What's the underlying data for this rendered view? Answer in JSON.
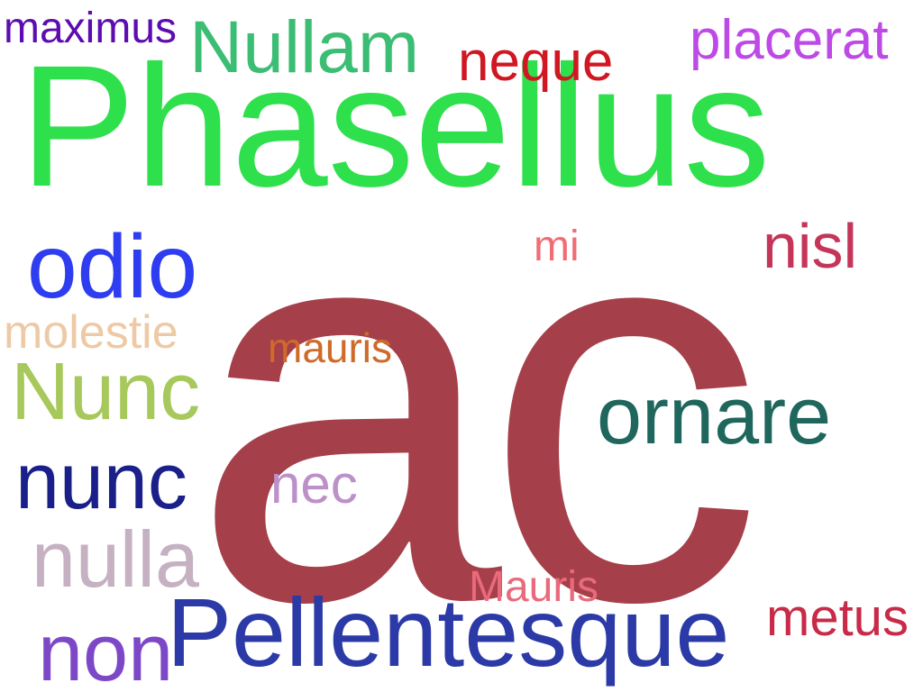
{
  "words": [
    {
      "text": "ac",
      "color": "#a5404a"
    },
    {
      "text": "Phasellus",
      "color": "#2fe04d"
    },
    {
      "text": "Pellentesque",
      "color": "#2b3aa6"
    },
    {
      "text": "ornare",
      "color": "#1f665c"
    },
    {
      "text": "odio",
      "color": "#2e3df0"
    },
    {
      "text": "Nullam",
      "color": "#3cbd74"
    },
    {
      "text": "Nunc",
      "color": "#a7c85a"
    },
    {
      "text": "nunc",
      "color": "#1a1f8a"
    },
    {
      "text": "nulla",
      "color": "#c5b1c1"
    },
    {
      "text": "non",
      "color": "#7d48c8"
    },
    {
      "text": "placerat",
      "color": "#bd4ae6"
    },
    {
      "text": "neque",
      "color": "#d01722"
    },
    {
      "text": "maximus",
      "color": "#5c0cb0"
    },
    {
      "text": "nisl",
      "color": "#c53459"
    },
    {
      "text": "mi",
      "color": "#ef6e76"
    },
    {
      "text": "molestie",
      "color": "#edcaa5"
    },
    {
      "text": "mauris",
      "color": "#cf6a2a"
    },
    {
      "text": "nec",
      "color": "#bc90c9"
    },
    {
      "text": "Mauris",
      "color": "#e96a7c"
    },
    {
      "text": "metus",
      "color": "#c82a47"
    }
  ]
}
